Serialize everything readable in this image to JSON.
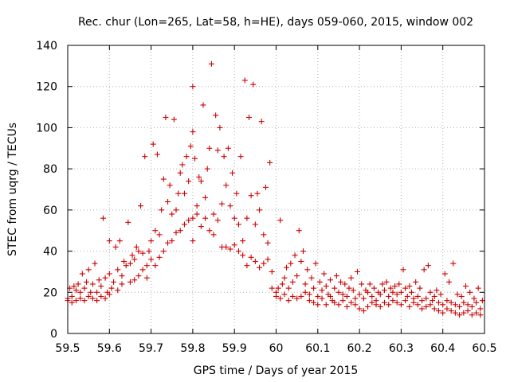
{
  "chart_data": {
    "type": "scatter",
    "title": "Rec. chur (Lon=265, Lat=58, h=HE), days 059-060, 2015, window 002",
    "xlabel": "GPS time / Days of year 2015",
    "ylabel": "STEC from uqrg / TECUs",
    "xlim": [
      59.5,
      60.5
    ],
    "ylim": [
      0,
      140
    ],
    "grid": true,
    "marker": "+",
    "color": "#cc0000",
    "xticks": [
      59.5,
      59.6,
      59.7,
      59.8,
      59.9,
      60,
      60.1,
      60.2,
      60.3,
      60.4,
      60.5
    ],
    "xtick_labels": [
      "59.5",
      "59.6",
      "59.7",
      "59.8",
      "59.9",
      "60",
      "60.1",
      "60.2",
      "60.3",
      "60.4",
      "60.5"
    ],
    "yticks": [
      0,
      20,
      40,
      60,
      80,
      100,
      120,
      140
    ],
    "ytick_labels": [
      "0",
      "20",
      "40",
      "60",
      "80",
      "100",
      "120",
      "140"
    ],
    "points": [
      [
        59.5,
        16
      ],
      [
        59.5,
        17
      ],
      [
        59.505,
        22
      ],
      [
        59.51,
        15
      ],
      [
        59.51,
        18
      ],
      [
        59.515,
        23
      ],
      [
        59.52,
        16
      ],
      [
        59.52,
        21
      ],
      [
        59.525,
        24
      ],
      [
        59.53,
        17
      ],
      [
        59.53,
        20
      ],
      [
        59.535,
        29
      ],
      [
        59.54,
        16
      ],
      [
        59.54,
        22
      ],
      [
        59.545,
        25
      ],
      [
        59.55,
        18
      ],
      [
        59.55,
        31
      ],
      [
        59.555,
        20
      ],
      [
        59.56,
        17
      ],
      [
        59.56,
        24
      ],
      [
        59.565,
        34
      ],
      [
        59.57,
        16
      ],
      [
        59.57,
        20
      ],
      [
        59.575,
        26
      ],
      [
        59.58,
        18
      ],
      [
        59.58,
        23
      ],
      [
        59.585,
        56
      ],
      [
        59.59,
        17
      ],
      [
        59.59,
        27
      ],
      [
        59.595,
        20
      ],
      [
        59.6,
        19
      ],
      [
        59.6,
        29
      ],
      [
        59.6,
        45
      ],
      [
        59.605,
        22
      ],
      [
        59.61,
        25
      ],
      [
        59.615,
        42
      ],
      [
        59.62,
        21
      ],
      [
        59.62,
        31
      ],
      [
        59.625,
        45
      ],
      [
        59.63,
        24
      ],
      [
        59.63,
        28
      ],
      [
        59.635,
        35
      ],
      [
        59.64,
        33
      ],
      [
        59.645,
        54
      ],
      [
        59.65,
        25
      ],
      [
        59.65,
        34
      ],
      [
        59.655,
        38
      ],
      [
        59.66,
        26
      ],
      [
        59.66,
        36
      ],
      [
        59.665,
        42
      ],
      [
        59.67,
        28
      ],
      [
        59.67,
        40
      ],
      [
        59.675,
        62
      ],
      [
        59.68,
        31
      ],
      [
        59.68,
        39
      ],
      [
        59.685,
        86
      ],
      [
        59.69,
        27
      ],
      [
        59.69,
        33
      ],
      [
        59.695,
        40
      ],
      [
        59.7,
        36
      ],
      [
        59.7,
        45
      ],
      [
        59.705,
        92
      ],
      [
        59.71,
        33
      ],
      [
        59.71,
        50
      ],
      [
        59.715,
        87
      ],
      [
        59.72,
        37
      ],
      [
        59.72,
        48
      ],
      [
        59.725,
        60
      ],
      [
        59.73,
        40
      ],
      [
        59.73,
        75
      ],
      [
        59.735,
        105
      ],
      [
        59.74,
        44
      ],
      [
        59.74,
        64
      ],
      [
        59.745,
        72
      ],
      [
        59.75,
        45
      ],
      [
        59.75,
        58
      ],
      [
        59.755,
        104
      ],
      [
        59.76,
        49
      ],
      [
        59.76,
        60
      ],
      [
        59.765,
        68
      ],
      [
        59.77,
        50
      ],
      [
        59.77,
        78
      ],
      [
        59.775,
        82
      ],
      [
        59.78,
        53
      ],
      [
        59.78,
        68
      ],
      [
        59.785,
        86
      ],
      [
        59.79,
        55
      ],
      [
        59.79,
        74
      ],
      [
        59.795,
        91
      ],
      [
        59.8,
        45
      ],
      [
        59.8,
        56
      ],
      [
        59.8,
        98
      ],
      [
        59.8,
        120
      ],
      [
        59.805,
        85
      ],
      [
        59.81,
        58
      ],
      [
        59.81,
        62
      ],
      [
        59.815,
        76
      ],
      [
        59.82,
        52
      ],
      [
        59.82,
        74
      ],
      [
        59.825,
        111
      ],
      [
        59.83,
        56
      ],
      [
        59.83,
        66
      ],
      [
        59.835,
        80
      ],
      [
        59.84,
        50
      ],
      [
        59.84,
        90
      ],
      [
        59.845,
        131
      ],
      [
        59.85,
        48
      ],
      [
        59.85,
        58
      ],
      [
        59.855,
        106
      ],
      [
        59.86,
        55
      ],
      [
        59.86,
        89
      ],
      [
        59.865,
        100
      ],
      [
        59.87,
        42
      ],
      [
        59.87,
        63
      ],
      [
        59.875,
        86
      ],
      [
        59.88,
        42
      ],
      [
        59.88,
        72
      ],
      [
        59.885,
        90
      ],
      [
        59.89,
        41
      ],
      [
        59.89,
        62
      ],
      [
        59.895,
        78
      ],
      [
        59.9,
        43
      ],
      [
        59.9,
        56
      ],
      [
        59.905,
        68
      ],
      [
        59.91,
        40
      ],
      [
        59.91,
        53
      ],
      [
        59.915,
        86
      ],
      [
        59.92,
        38
      ],
      [
        59.92,
        45
      ],
      [
        59.925,
        123
      ],
      [
        59.93,
        33
      ],
      [
        59.93,
        56
      ],
      [
        59.935,
        105
      ],
      [
        59.94,
        37
      ],
      [
        59.94,
        67
      ],
      [
        59.945,
        121
      ],
      [
        59.95,
        35
      ],
      [
        59.95,
        53
      ],
      [
        59.955,
        68
      ],
      [
        59.96,
        32
      ],
      [
        59.96,
        60
      ],
      [
        59.965,
        103
      ],
      [
        59.97,
        34
      ],
      [
        59.97,
        48
      ],
      [
        59.975,
        71
      ],
      [
        59.98,
        36
      ],
      [
        59.98,
        44
      ],
      [
        59.985,
        83
      ],
      [
        59.99,
        22
      ],
      [
        59.99,
        30
      ],
      [
        60,
        18
      ],
      [
        60,
        20
      ],
      [
        60.005,
        22
      ],
      [
        60.01,
        17
      ],
      [
        60.01,
        55
      ],
      [
        60.015,
        24
      ],
      [
        60.02,
        19
      ],
      [
        60.02,
        27
      ],
      [
        60.025,
        32
      ],
      [
        60.03,
        16
      ],
      [
        60.03,
        22
      ],
      [
        60.035,
        34
      ],
      [
        60.04,
        18
      ],
      [
        60.04,
        25
      ],
      [
        60.045,
        38
      ],
      [
        60.05,
        17
      ],
      [
        60.05,
        28
      ],
      [
        60.055,
        50
      ],
      [
        60.06,
        18
      ],
      [
        60.06,
        35
      ],
      [
        60.065,
        40
      ],
      [
        60.07,
        20
      ],
      [
        60.07,
        24
      ],
      [
        60.075,
        31
      ],
      [
        60.08,
        16
      ],
      [
        60.08,
        19
      ],
      [
        60.085,
        27
      ],
      [
        60.09,
        15
      ],
      [
        60.09,
        22
      ],
      [
        60.095,
        34
      ],
      [
        60.1,
        14
      ],
      [
        60.1,
        18
      ],
      [
        60.105,
        25
      ],
      [
        60.11,
        17
      ],
      [
        60.11,
        21
      ],
      [
        60.115,
        29
      ],
      [
        60.12,
        14
      ],
      [
        60.12,
        23
      ],
      [
        60.125,
        19
      ],
      [
        60.13,
        18
      ],
      [
        60.13,
        26
      ],
      [
        60.135,
        16
      ],
      [
        60.14,
        15
      ],
      [
        60.14,
        22
      ],
      [
        60.145,
        28
      ],
      [
        60.15,
        14
      ],
      [
        60.15,
        20
      ],
      [
        60.155,
        25
      ],
      [
        60.16,
        16
      ],
      [
        60.16,
        19
      ],
      [
        60.165,
        24
      ],
      [
        60.17,
        13
      ],
      [
        60.17,
        18
      ],
      [
        60.175,
        22
      ],
      [
        60.18,
        15
      ],
      [
        60.18,
        27
      ],
      [
        60.185,
        21
      ],
      [
        60.19,
        14
      ],
      [
        60.19,
        17
      ],
      [
        60.195,
        30
      ],
      [
        60.2,
        12
      ],
      [
        60.2,
        19
      ],
      [
        60.205,
        24
      ],
      [
        60.21,
        11
      ],
      [
        60.21,
        17
      ],
      [
        60.215,
        21
      ],
      [
        60.22,
        13
      ],
      [
        60.22,
        20
      ],
      [
        60.225,
        24
      ],
      [
        60.23,
        15
      ],
      [
        60.23,
        18
      ],
      [
        60.235,
        22
      ],
      [
        60.24,
        14
      ],
      [
        60.24,
        16
      ],
      [
        60.245,
        20
      ],
      [
        60.25,
        13
      ],
      [
        60.25,
        19
      ],
      [
        60.255,
        24
      ],
      [
        60.26,
        15
      ],
      [
        60.26,
        21
      ],
      [
        60.265,
        25
      ],
      [
        60.27,
        14
      ],
      [
        60.27,
        18
      ],
      [
        60.275,
        22
      ],
      [
        60.28,
        16
      ],
      [
        60.28,
        20
      ],
      [
        60.285,
        23
      ],
      [
        60.29,
        15
      ],
      [
        60.29,
        19
      ],
      [
        60.295,
        24
      ],
      [
        60.3,
        14
      ],
      [
        60.3,
        20
      ],
      [
        60.305,
        31
      ],
      [
        60.31,
        16
      ],
      [
        60.31,
        22
      ],
      [
        60.315,
        18
      ],
      [
        60.32,
        13
      ],
      [
        60.32,
        23
      ],
      [
        60.325,
        20
      ],
      [
        60.33,
        15
      ],
      [
        60.33,
        17
      ],
      [
        60.335,
        25
      ],
      [
        60.34,
        14
      ],
      [
        60.34,
        18
      ],
      [
        60.345,
        22
      ],
      [
        60.35,
        12
      ],
      [
        60.35,
        16
      ],
      [
        60.355,
        31
      ],
      [
        60.36,
        13
      ],
      [
        60.36,
        17
      ],
      [
        60.365,
        33
      ],
      [
        60.37,
        14
      ],
      [
        60.37,
        20
      ],
      [
        60.375,
        16
      ],
      [
        60.38,
        12
      ],
      [
        60.38,
        18
      ],
      [
        60.385,
        21
      ],
      [
        60.39,
        11
      ],
      [
        60.39,
        15
      ],
      [
        60.395,
        19
      ],
      [
        60.4,
        10
      ],
      [
        60.4,
        14
      ],
      [
        60.405,
        29
      ],
      [
        60.41,
        12
      ],
      [
        60.41,
        16
      ],
      [
        60.415,
        25
      ],
      [
        60.42,
        11
      ],
      [
        60.42,
        15
      ],
      [
        60.425,
        34
      ],
      [
        60.43,
        10
      ],
      [
        60.43,
        14
      ],
      [
        60.435,
        19
      ],
      [
        60.44,
        9
      ],
      [
        60.44,
        13
      ],
      [
        60.445,
        18
      ],
      [
        60.45,
        10
      ],
      [
        60.45,
        15
      ],
      [
        60.455,
        23
      ],
      [
        60.46,
        11
      ],
      [
        60.46,
        14
      ],
      [
        60.465,
        20
      ],
      [
        60.47,
        9
      ],
      [
        60.47,
        13
      ],
      [
        60.475,
        17
      ],
      [
        60.48,
        10
      ],
      [
        60.48,
        15
      ],
      [
        60.485,
        22
      ],
      [
        60.49,
        9
      ],
      [
        60.49,
        12
      ],
      [
        60.495,
        16
      ]
    ]
  }
}
